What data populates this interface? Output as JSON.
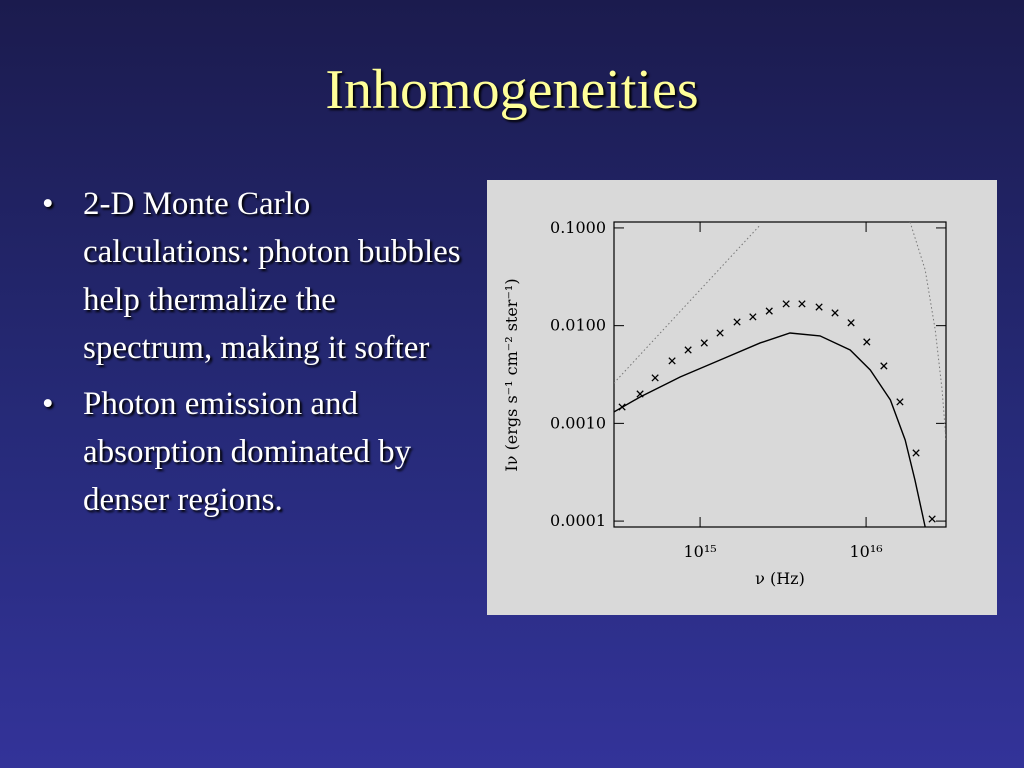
{
  "title": "Inhomogeneities",
  "bullets": [
    "2-D Monte Carlo calculations: photon bubbles help thermalize the spectrum, making it softer",
    "Photon emission and absorption dominated by denser regions."
  ],
  "chart_data": {
    "type": "line",
    "xlabel": "ν (Hz)",
    "ylabel": "Iν (ergs s⁻¹ cm⁻² ster⁻¹)",
    "xscale": "log",
    "yscale": "log",
    "xlim": [
      303000000000000.0,
      3.03e+16
    ],
    "ylim": [
      8.7e-05,
      0.115
    ],
    "xticks": [
      {
        "value": 1000000000000000.0,
        "label": "10¹⁵"
      },
      {
        "value": 1e+16,
        "label": "10¹⁶"
      }
    ],
    "yticks": [
      {
        "value": 0.1,
        "label": "0.1000"
      },
      {
        "value": 0.01,
        "label": "0.0100"
      },
      {
        "value": 0.001,
        "label": "0.0010"
      },
      {
        "value": 0.0001,
        "label": "0.0001"
      }
    ],
    "series": [
      {
        "color": "#000000",
        "style": "solid",
        "marker": "none",
        "x": [
          303000000000000.0,
          435000000000000.0,
          758000000000000.0,
          1320000000000000.0,
          2300000000000000.0,
          3480000000000000.0,
          5280000000000000.0,
          8020000000000000.0,
          1.06e+16,
          1.4e+16,
          1.72e+16,
          1.97e+16,
          2.27e+16
        ],
        "values": [
          0.00131,
          0.00186,
          0.00298,
          0.00445,
          0.00665,
          0.00841,
          0.00785,
          0.00564,
          0.00352,
          0.00174,
          0.000676,
          0.000263,
          8.7e-05
        ]
      },
      {
        "color": "#000000",
        "style": "none",
        "marker": "x",
        "x": [
          339000000000000.0,
          435000000000000.0,
          536000000000000.0,
          678000000000000.0,
          847000000000000.0,
          1060000000000000.0,
          1320000000000000.0,
          1670000000000000.0,
          2080000000000000.0,
          2610000000000000.0,
          3300000000000000.0,
          4110000000000000.0,
          5210000000000000.0,
          6500000000000000.0,
          8120000000000000.0,
          1.01e+16,
          1.28e+16,
          1.6e+16,
          2e+16,
          2.5e+16
        ],
        "values": [
          0.00147,
          0.002,
          0.00292,
          0.00436,
          0.00564,
          0.00665,
          0.00841,
          0.0109,
          0.0123,
          0.0141,
          0.0167,
          0.0167,
          0.0155,
          0.0135,
          0.0107,
          0.00681,
          0.00387,
          0.00166,
          0.000498,
          0.000105
        ]
      },
      {
        "color": "#777777",
        "style": "dotted",
        "marker": "none",
        "x": [
          303000000000000.0,
          2300000000000000.0
        ],
        "values": [
          0.00259,
          0.107
        ]
      },
      {
        "color": "#777777",
        "style": "dotted",
        "marker": "none",
        "x": [
          1.84e+16,
          2.27e+16,
          2.61e+16,
          2.87e+16,
          3.03e+16
        ],
        "values": [
          0.115,
          0.0372,
          0.00904,
          0.0022,
          0.000676
        ]
      }
    ]
  }
}
